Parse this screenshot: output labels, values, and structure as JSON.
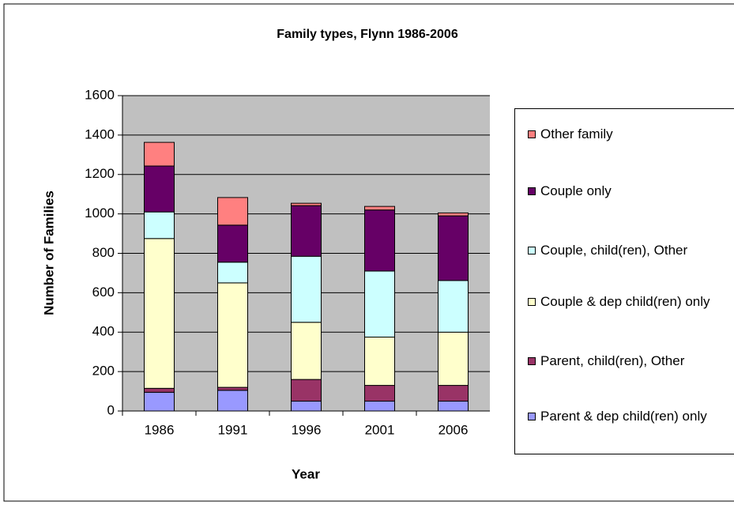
{
  "chart_data": {
    "type": "stacked_bar",
    "title": "Family types, Flynn 1986-2006",
    "x_label": "Year",
    "y_label": "Number of Families",
    "categories": [
      "1986",
      "1991",
      "1996",
      "2001",
      "2006"
    ],
    "series": [
      {
        "name": "Parent & dep child(ren) only",
        "color": "#9999ff",
        "values": [
          95,
          105,
          50,
          50,
          50
        ]
      },
      {
        "name": "Parent, child(ren), Other",
        "color": "#993366",
        "values": [
          20,
          15,
          110,
          80,
          80
        ]
      },
      {
        "name": "Couple & dep child(ren) only",
        "color": "#ffffcc",
        "values": [
          760,
          530,
          290,
          245,
          270
        ]
      },
      {
        "name": "Couple, child(ren), Other",
        "color": "#ccffff",
        "values": [
          135,
          105,
          335,
          335,
          262
        ]
      },
      {
        "name": "Couple only",
        "color": "#660066",
        "values": [
          233,
          188,
          257,
          310,
          328
        ]
      },
      {
        "name": "Other family",
        "color": "#ff8080",
        "values": [
          120,
          140,
          12,
          18,
          15
        ]
      }
    ],
    "ylim": [
      0,
      1600
    ],
    "yticks": [
      0,
      200,
      400,
      600,
      800,
      1000,
      1200,
      1400,
      1600
    ],
    "grid": true,
    "legend": "right"
  }
}
